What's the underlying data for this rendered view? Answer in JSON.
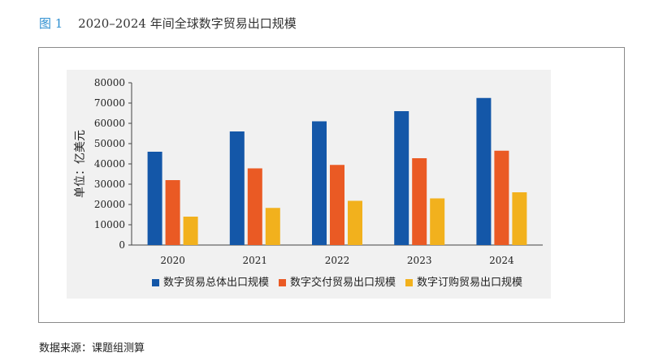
{
  "figure": {
    "number": "图 1",
    "title": "2020–2024 年间全球数字贸易出口规模"
  },
  "source_note": "数据来源：课题组测算",
  "chart_data": {
    "type": "bar",
    "categories": [
      "2020",
      "2021",
      "2022",
      "2023",
      "2024"
    ],
    "ylabel": "单位：亿美元",
    "ylim": [
      0,
      80000
    ],
    "yticks": [
      0,
      10000,
      20000,
      30000,
      40000,
      50000,
      60000,
      70000,
      80000
    ],
    "grid": false,
    "legend_position": "bottom",
    "series": [
      {
        "name": "数字贸易总体出口规模",
        "color": "#1457a8",
        "values": [
          46000,
          56000,
          61000,
          66000,
          72500
        ]
      },
      {
        "name": "数字交付贸易出口规模",
        "color": "#ea5a24",
        "values": [
          32000,
          37800,
          39500,
          42800,
          46500
        ]
      },
      {
        "name": "数字订购贸易出口规模",
        "color": "#f2b11d",
        "values": [
          14000,
          18300,
          21800,
          23000,
          26000
        ]
      }
    ]
  }
}
